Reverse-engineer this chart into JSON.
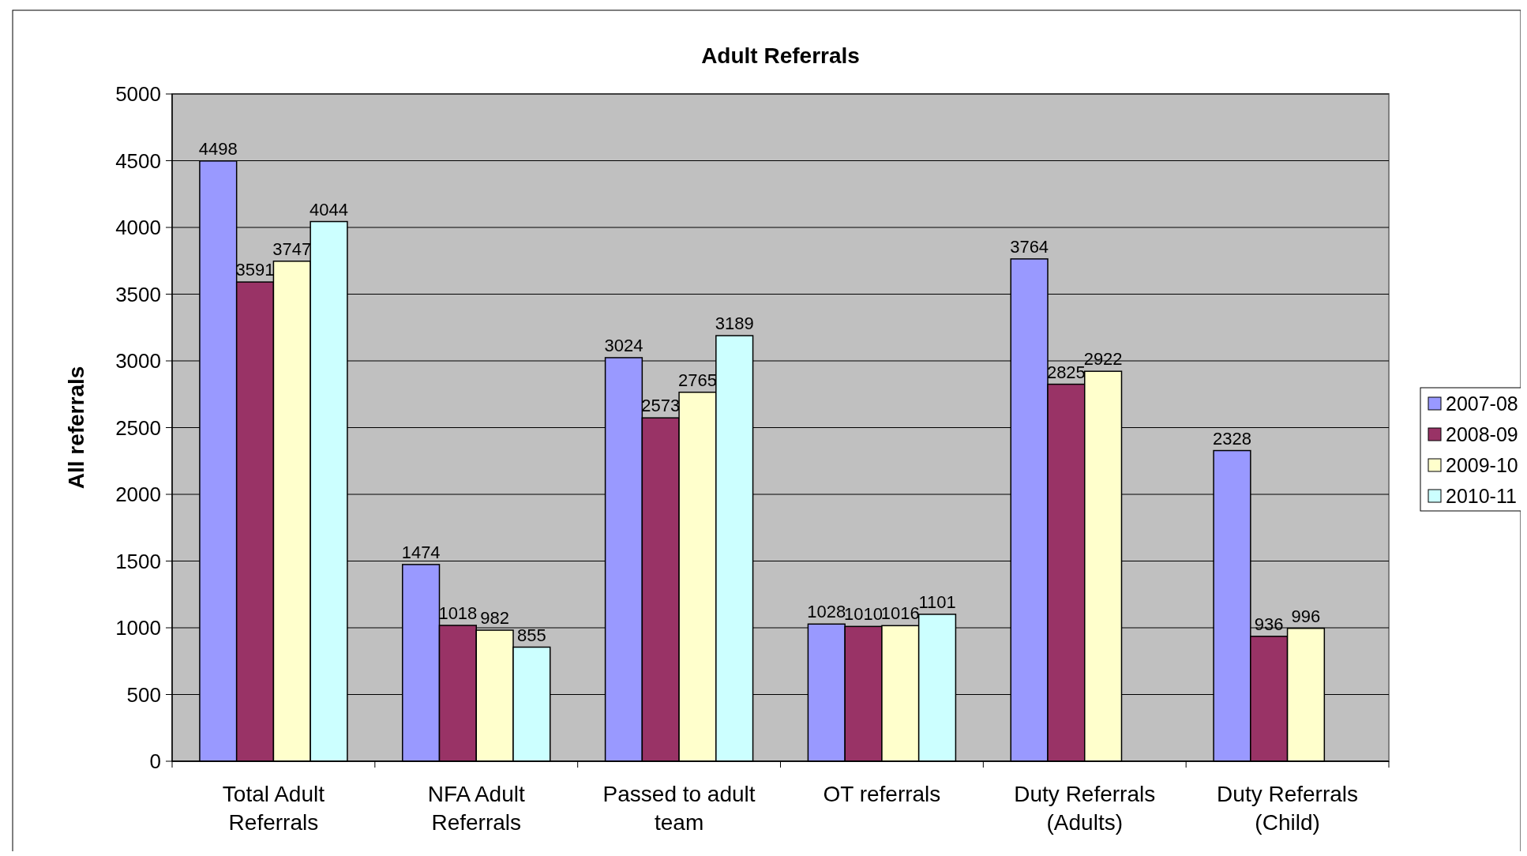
{
  "chart_data": {
    "type": "bar",
    "title": "Adult Referrals",
    "ylabel": "All referrals",
    "categories": [
      "Total Adult Referrals",
      "NFA Adult Referrals",
      "Passed to adult team",
      "OT referrals",
      "Duty Referrals (Adults)",
      "Duty Referrals (Child)"
    ],
    "series": [
      {
        "name": "2007-08",
        "color": "#9999ff",
        "values": [
          4498,
          1474,
          3024,
          1028,
          3764,
          2328
        ]
      },
      {
        "name": "2008-09",
        "color": "#993366",
        "values": [
          3591,
          1018,
          2573,
          1010,
          2825,
          936
        ]
      },
      {
        "name": "2009-10",
        "color": "#ffffcc",
        "values": [
          3747,
          982,
          2765,
          1016,
          2922,
          996
        ]
      },
      {
        "name": "2010-11",
        "color": "#ccffff",
        "values": [
          4044,
          855,
          3189,
          1101,
          null,
          null
        ]
      }
    ],
    "ylim": [
      0,
      5000
    ],
    "yticks": [
      0,
      500,
      1000,
      1500,
      2000,
      2500,
      3000,
      3500,
      4000,
      4500,
      5000
    ],
    "grid": "y",
    "legend": "right",
    "data_labels": true
  }
}
